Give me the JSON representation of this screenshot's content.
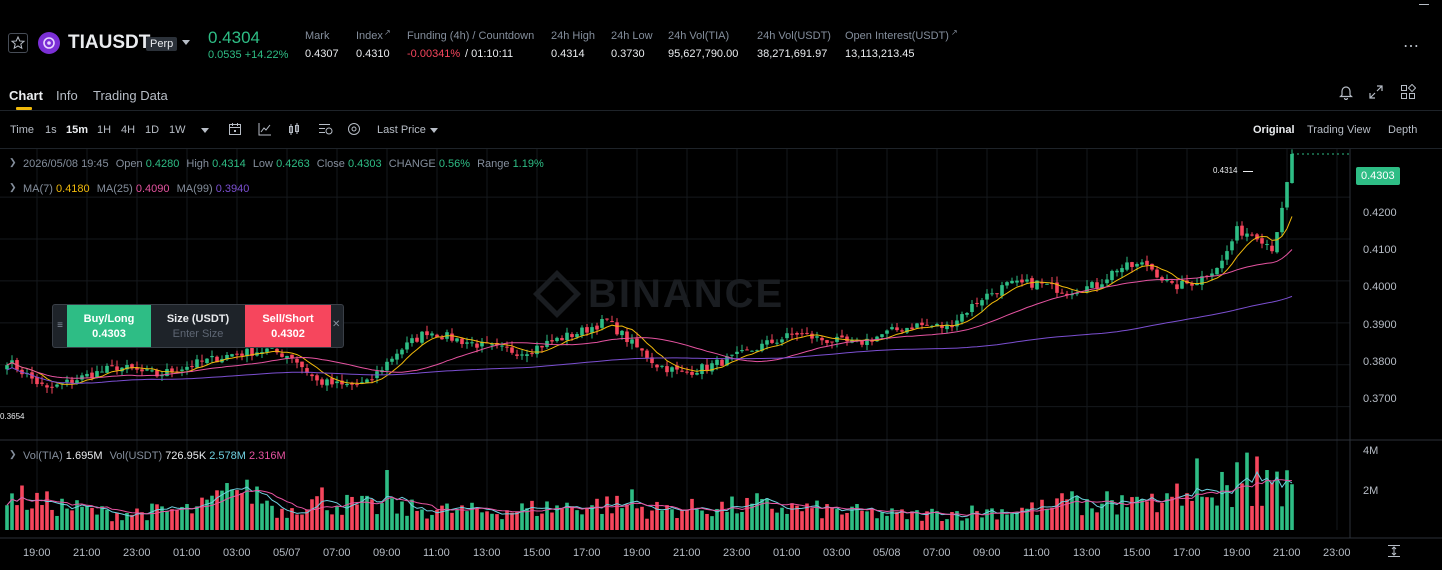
{
  "header": {
    "symbol": "TIAUSDT",
    "badge": "Perp",
    "last_price": "0.4304",
    "change": "0.0535 +14.22%",
    "stats": [
      {
        "label": "Mark",
        "value": "0.4307"
      },
      {
        "label": "Index",
        "value": "0.4310"
      },
      {
        "label": "Funding (4h) / Countdown",
        "value_red": "-0.00341%",
        "value": "/ 01:10:11"
      },
      {
        "label": "24h High",
        "value": "0.4314"
      },
      {
        "label": "24h Low",
        "value": "0.3730"
      },
      {
        "label": "24h Vol(TIA)",
        "value": "95,627,790.00"
      },
      {
        "label": "24h Vol(USDT)",
        "value": "38,271,691.97"
      },
      {
        "label": "Open Interest(USDT)",
        "value": "13,113,213.45"
      }
    ]
  },
  "tabs": [
    "Chart",
    "Info",
    "Trading Data"
  ],
  "toolbar": {
    "intervals": [
      "Time",
      "1s",
      "15m",
      "1H",
      "4H",
      "1D",
      "1W"
    ],
    "active_interval": "15m",
    "price_type": "Last Price",
    "views": [
      "Original",
      "Trading View",
      "Depth"
    ],
    "active_view": "Original"
  },
  "ohlc": {
    "date": "2026/05/08 19:45",
    "open_label": "Open",
    "open": "0.4280",
    "high_label": "High",
    "high": "0.4314",
    "low_label": "Low",
    "low": "0.4263",
    "close_label": "Close",
    "close": "0.4303",
    "change_label": "CHANGE",
    "change": "0.56%",
    "range_label": "Range",
    "range": "1.19%"
  },
  "ma": {
    "ma7_label": "MA(7)",
    "ma7": "0.4180",
    "ma25_label": "MA(25)",
    "ma25": "0.4090",
    "ma99_label": "MA(99)",
    "ma99": "0.3940"
  },
  "order_panel": {
    "buy_label": "Buy/Long",
    "buy_price": "0.4303",
    "size_label": "Size (USDT)",
    "size_placeholder": "Enter Size",
    "sell_label": "Sell/Short",
    "sell_price": "0.4302"
  },
  "price_axis": [
    "0.4200",
    "0.4100",
    "0.4000",
    "0.3900",
    "0.3800",
    "0.3700"
  ],
  "current_price_tag": "0.4303",
  "high_marker": "0.4314",
  "low_marker": "0.3654",
  "watermark": "BINANCE",
  "volume": {
    "label": "Vol(TIA)",
    "tia": "1.695M",
    "usdt_label": "Vol(USDT)",
    "usdt": "726.95K",
    "ma1": "2.578M",
    "ma2": "2.316M",
    "axis": [
      "4M",
      "2M"
    ]
  },
  "time_axis": [
    "19:00",
    "21:00",
    "23:00",
    "01:00",
    "03:00",
    "05/07",
    "07:00",
    "09:00",
    "11:00",
    "13:00",
    "15:00",
    "17:00",
    "19:00",
    "21:00",
    "23:00",
    "01:00",
    "03:00",
    "05/08",
    "07:00",
    "09:00",
    "11:00",
    "13:00",
    "15:00",
    "17:00",
    "19:00",
    "21:00",
    "23:00"
  ],
  "colors": {
    "up": "#2ebd85",
    "down": "#f6465d",
    "ma7": "#f0b90b",
    "ma25": "#e553a0",
    "ma99": "#7b4fd1"
  },
  "chart_data": {
    "type": "candlestick",
    "ylim": [
      0.3625,
      0.4315
    ],
    "x_unit": "15m bars",
    "anchors": [
      [
        0,
        0.381
      ],
      [
        8,
        0.374
      ],
      [
        15,
        0.377
      ],
      [
        22,
        0.3795
      ],
      [
        30,
        0.3775
      ],
      [
        37,
        0.38
      ],
      [
        45,
        0.3825
      ],
      [
        52,
        0.3835
      ],
      [
        57,
        0.382
      ],
      [
        62,
        0.376
      ],
      [
        67,
        0.375
      ],
      [
        72,
        0.3755
      ],
      [
        78,
        0.383
      ],
      [
        84,
        0.388
      ],
      [
        90,
        0.386
      ],
      [
        97,
        0.384
      ],
      [
        103,
        0.383
      ],
      [
        110,
        0.386
      ],
      [
        115,
        0.388
      ],
      [
        120,
        0.3905
      ],
      [
        125,
        0.385
      ],
      [
        130,
        0.38
      ],
      [
        135,
        0.378
      ],
      [
        140,
        0.3795
      ],
      [
        146,
        0.382
      ],
      [
        152,
        0.385
      ],
      [
        158,
        0.3875
      ],
      [
        163,
        0.386
      ],
      [
        170,
        0.385
      ],
      [
        177,
        0.388
      ],
      [
        182,
        0.3895
      ],
      [
        188,
        0.389
      ],
      [
        195,
        0.396
      ],
      [
        200,
        0.399
      ],
      [
        206,
        0.3995
      ],
      [
        212,
        0.3975
      ],
      [
        218,
        0.399
      ],
      [
        222,
        0.403
      ],
      [
        228,
        0.404
      ],
      [
        233,
        0.3985
      ],
      [
        238,
        0.4
      ],
      [
        243,
        0.4045
      ],
      [
        246,
        0.412
      ],
      [
        250,
        0.411
      ],
      [
        253,
        0.408
      ],
      [
        255,
        0.4165
      ],
      [
        257,
        0.4295
      ]
    ],
    "volume_anchors": [
      [
        0,
        1.8
      ],
      [
        20,
        0.9
      ],
      [
        38,
        1.1
      ],
      [
        43,
        1.8
      ],
      [
        48,
        2.3
      ],
      [
        55,
        1.0
      ],
      [
        60,
        1.6
      ],
      [
        75,
        1.2
      ],
      [
        95,
        1.0
      ],
      [
        120,
        1.4
      ],
      [
        130,
        1.1
      ],
      [
        150,
        1.3
      ],
      [
        180,
        0.8
      ],
      [
        215,
        1.3
      ],
      [
        225,
        1.4
      ],
      [
        240,
        1.6
      ],
      [
        248,
        1.8
      ],
      [
        257,
        2.5
      ]
    ],
    "volume_spikes": [
      [
        3,
        2.3
      ],
      [
        45,
        2.1
      ],
      [
        48,
        2.6
      ],
      [
        63,
        2.2
      ],
      [
        76,
        3.1
      ],
      [
        125,
        2.1
      ],
      [
        150,
        1.9
      ],
      [
        211,
        1.9
      ],
      [
        213,
        2.0
      ],
      [
        220,
        2.0
      ],
      [
        234,
        2.4
      ],
      [
        238,
        3.7
      ],
      [
        243,
        3.0
      ],
      [
        246,
        3.5
      ],
      [
        248,
        4.0
      ],
      [
        250,
        3.8
      ],
      [
        252,
        3.1
      ]
    ],
    "vol_ylim": [
      0,
      4.6
    ]
  }
}
